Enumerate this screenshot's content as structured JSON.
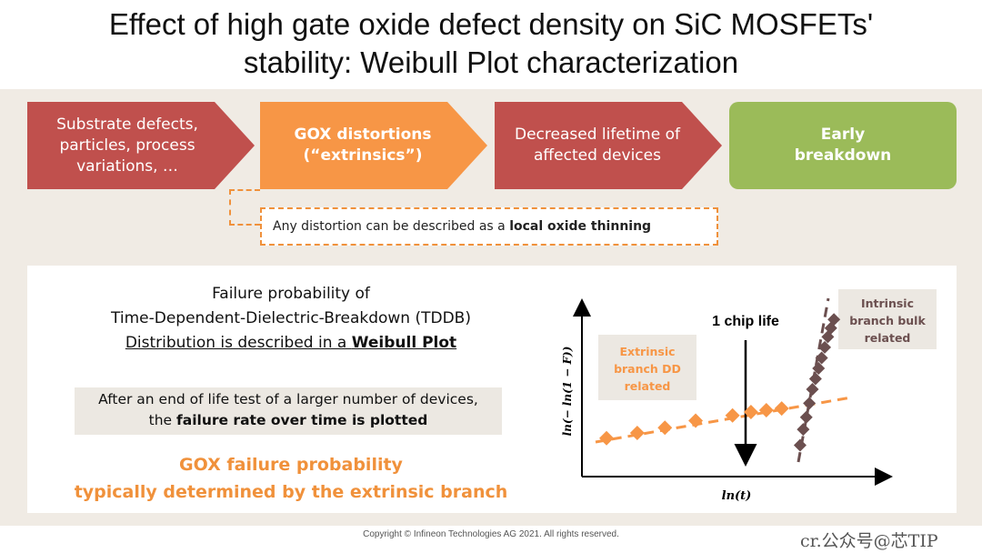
{
  "title_line1": "Effect of high gate oxide defect density on SiC MOSFETs'",
  "title_line2": "stability: Weibull Plot characterization",
  "flow": [
    {
      "line1": "Substrate defects,",
      "line2": "particles, process",
      "line3": "variations, …",
      "color": "#c0504d"
    },
    {
      "line1": "GOX distortions",
      "line2": "(“extrinsics”)",
      "color": "#f79646"
    },
    {
      "line1": "Decreased lifetime of",
      "line2": "affected devices",
      "color": "#c0504d"
    },
    {
      "line1": "Early",
      "line2": "breakdown",
      "color": "#9bbb59"
    }
  ],
  "note": {
    "prefix": "Any distortion can be described as a ",
    "bold": "local oxide thinning"
  },
  "left": {
    "line1": "Failure probability of",
    "line2": "Time-Dependent-Dielectric-Breakdown (TDDB)",
    "line3_prefix": "Distribution is described in a ",
    "line3_bold": "Weibull Plot",
    "box_line1": "After an end of life test of a larger number  of devices,",
    "box_line2_prefix": "the ",
    "box_line2_bold": "failure rate over time is plotted",
    "gox_line1": "GOX failure probability",
    "gox_line2": "typically determined by the extrinsic branch"
  },
  "chart_labels": {
    "chip_life": "1 chip life",
    "extrinsic": [
      "Extrinsic",
      "branch DD",
      "related"
    ],
    "intrinsic": [
      "Intrinsic",
      "branch bulk",
      "related"
    ],
    "ylabel": "ln(− ln(1 − F))",
    "xlabel": "ln(t)"
  },
  "chart_data": {
    "type": "scatter",
    "xlabel": "ln(t)",
    "ylabel": "ln(− ln(1 − F))",
    "series": [
      {
        "name": "Extrinsic branch DD related",
        "color": "#f79646",
        "x": [
          0.08,
          0.18,
          0.27,
          0.37,
          0.49,
          0.55,
          0.6,
          0.65
        ],
        "y": [
          0.22,
          0.25,
          0.28,
          0.32,
          0.35,
          0.37,
          0.38,
          0.39
        ]
      },
      {
        "name": "Intrinsic branch bulk related",
        "color": "#6b4f4f",
        "x": [
          0.71,
          0.72,
          0.73,
          0.74,
          0.75,
          0.76,
          0.77,
          0.78,
          0.79,
          0.8,
          0.81,
          0.82
        ],
        "y": [
          0.18,
          0.27,
          0.34,
          0.42,
          0.5,
          0.56,
          0.62,
          0.68,
          0.74,
          0.8,
          0.85,
          0.9
        ]
      }
    ]
  },
  "copyright": "Copyright © Infineon Technologies AG 2021. All rights reserved.",
  "watermark": "cr.公众号@芯TIP"
}
